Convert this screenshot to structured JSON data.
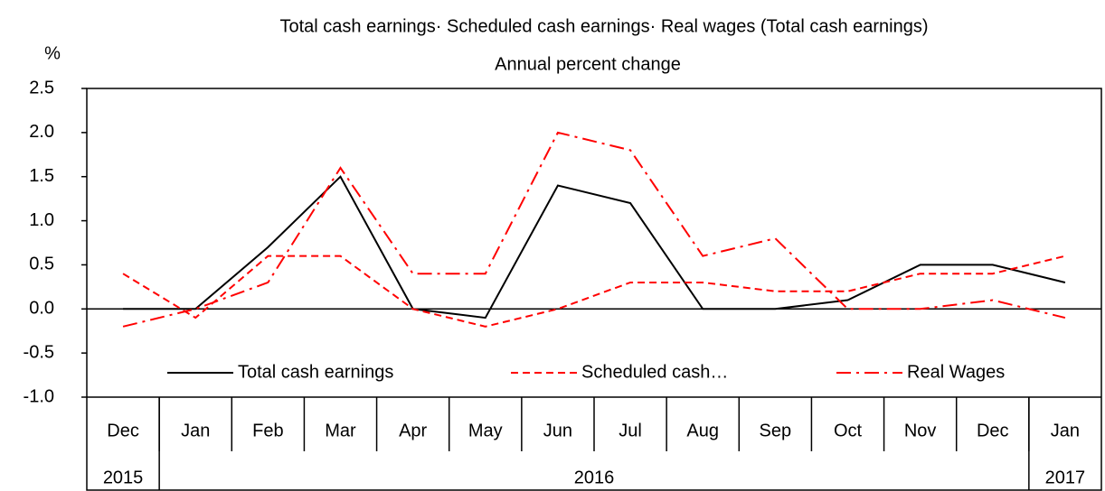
{
  "chart_data": {
    "type": "line",
    "title": "Total cash earnings· Scheduled cash earnings· Real wages (Total cash earnings)",
    "subtitle": "Annual percent change",
    "y_label": "%",
    "categories": [
      "Dec",
      "Jan",
      "Feb",
      "Mar",
      "Apr",
      "May",
      "Jun",
      "Jul",
      "Aug",
      "Sep",
      "Oct",
      "Nov",
      "Dec",
      "Jan"
    ],
    "x_groups": [
      {
        "label": "2015",
        "span": 1
      },
      {
        "label": "2016",
        "span": 12
      },
      {
        "label": "2017",
        "span": 1
      }
    ],
    "series": [
      {
        "name": "Total cash earnings",
        "color": "#000000",
        "style": "solid",
        "values": [
          0,
          0,
          0.7,
          1.5,
          0,
          -0.1,
          1.4,
          1.2,
          0,
          0,
          0.1,
          0.5,
          0.5,
          0.3
        ]
      },
      {
        "name": "Scheduled cash…",
        "color": "#ff0000",
        "style": "dashed",
        "values": [
          0.4,
          -0.1,
          0.6,
          0.6,
          0,
          -0.2,
          0,
          0.3,
          0.3,
          0.2,
          0.2,
          0.4,
          0.4,
          0.6
        ]
      },
      {
        "name": "Real Wages",
        "color": "#ff0000",
        "style": "dashdot",
        "values": [
          -0.2,
          0,
          0.3,
          1.6,
          0.4,
          0.4,
          2.0,
          1.8,
          0.6,
          0.8,
          0,
          0,
          0.1,
          -0.1
        ]
      }
    ],
    "ylim": [
      -1.0,
      2.5
    ],
    "yticks": [
      {
        "value": -1,
        "label": "-1.0"
      },
      -0.5,
      {
        "value": 0,
        "label": "0.0"
      },
      0.5,
      {
        "value": 1,
        "label": "1.0"
      },
      1.5,
      {
        "value": 2,
        "label": "2.0"
      },
      2.5
    ],
    "legend": "bottom"
  }
}
